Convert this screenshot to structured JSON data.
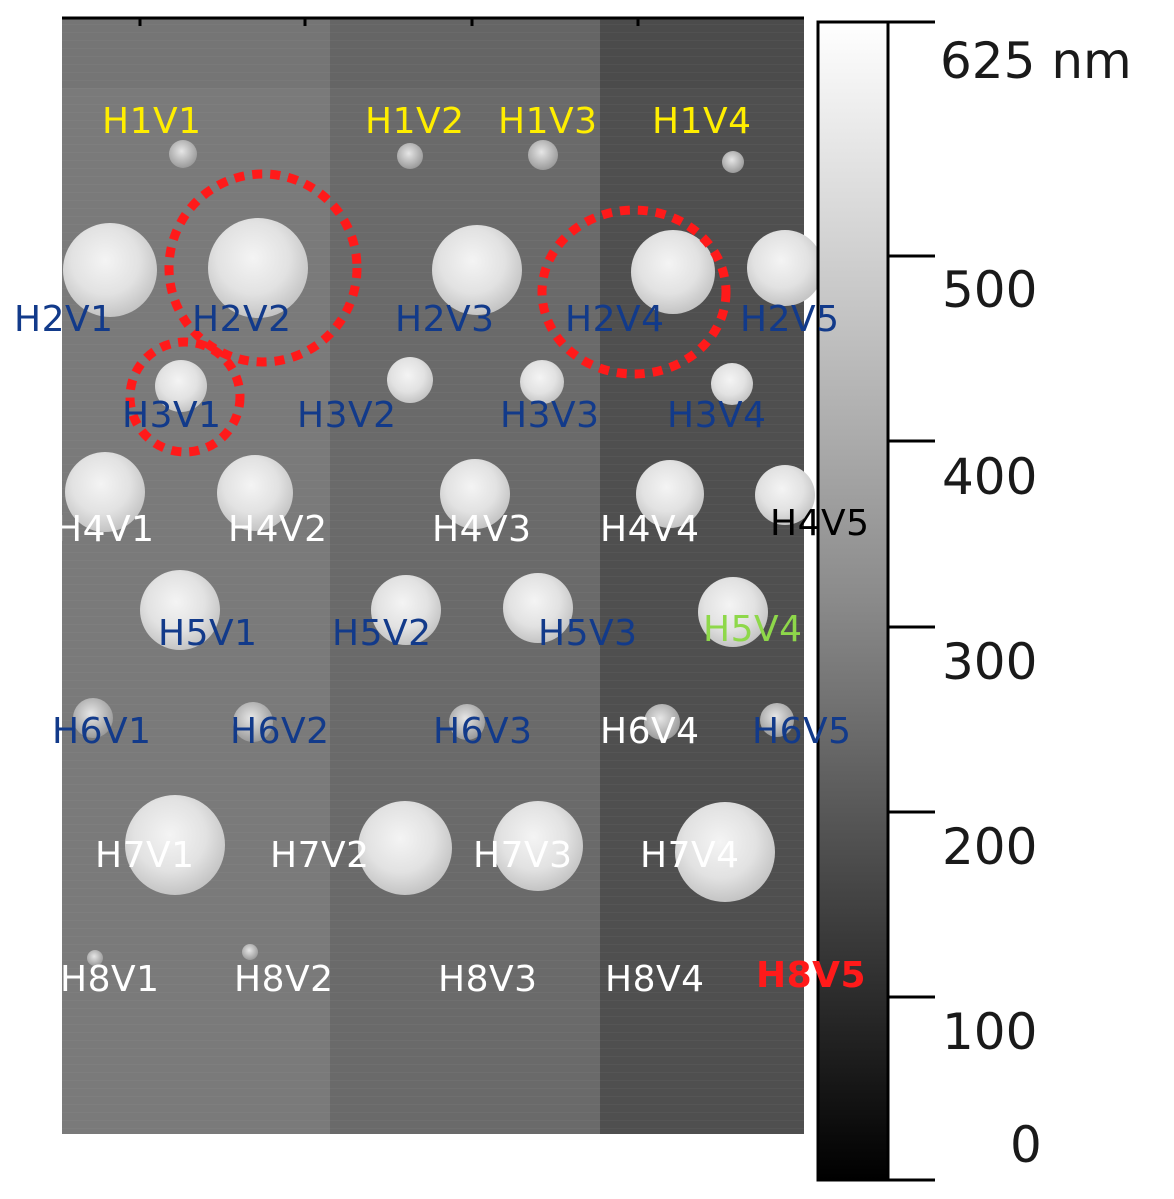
{
  "colors": {
    "label_yellow": "#ffee00",
    "label_blue": "#123a8a",
    "label_white": "#ffffff",
    "label_black": "#000000",
    "label_green": "#8ed84a",
    "label_red": "#ff1a1a",
    "highlight_ring": "#ff1a1a"
  },
  "scale_bar": {
    "unit_label": "625 nm",
    "ticks": [
      "500",
      "400",
      "300",
      "200",
      "100",
      "0"
    ],
    "max_value": 625,
    "min_value": 0
  },
  "labels": [
    {
      "text": "H1V1",
      "color": "yellow"
    },
    {
      "text": "H1V2",
      "color": "yellow"
    },
    {
      "text": "H1V3",
      "color": "yellow"
    },
    {
      "text": "H1V4",
      "color": "yellow"
    },
    {
      "text": "H2V1",
      "color": "blue"
    },
    {
      "text": "H2V2",
      "color": "blue"
    },
    {
      "text": "H2V3",
      "color": "blue"
    },
    {
      "text": "H2V4",
      "color": "blue"
    },
    {
      "text": "H2V5",
      "color": "blue"
    },
    {
      "text": "H3V1",
      "color": "blue"
    },
    {
      "text": "H3V2",
      "color": "blue"
    },
    {
      "text": "H3V3",
      "color": "blue"
    },
    {
      "text": "H3V4",
      "color": "blue"
    },
    {
      "text": "H4V1",
      "color": "white"
    },
    {
      "text": "H4V2",
      "color": "white"
    },
    {
      "text": "H4V3",
      "color": "white"
    },
    {
      "text": "H4V4",
      "color": "white"
    },
    {
      "text": "H4V5",
      "color": "black"
    },
    {
      "text": "H5V1",
      "color": "blue"
    },
    {
      "text": "H5V2",
      "color": "blue"
    },
    {
      "text": "H5V3",
      "color": "blue"
    },
    {
      "text": "H5V4",
      "color": "green"
    },
    {
      "text": "H6V1",
      "color": "blue"
    },
    {
      "text": "H6V2",
      "color": "blue"
    },
    {
      "text": "H6V3",
      "color": "blue"
    },
    {
      "text": "H6V4",
      "color": "white"
    },
    {
      "text": "H6V5",
      "color": "blue"
    },
    {
      "text": "H7V1",
      "color": "white"
    },
    {
      "text": "H7V2",
      "color": "white"
    },
    {
      "text": "H7V3",
      "color": "white"
    },
    {
      "text": "H7V4",
      "color": "white"
    },
    {
      "text": "H8V1",
      "color": "white"
    },
    {
      "text": "H8V2",
      "color": "white"
    },
    {
      "text": "H8V3",
      "color": "white"
    },
    {
      "text": "H8V4",
      "color": "white"
    },
    {
      "text": "H8V5",
      "color": "red",
      "bold": true
    }
  ],
  "highlighted": [
    "H2V2",
    "H2V4",
    "H3V1"
  ]
}
